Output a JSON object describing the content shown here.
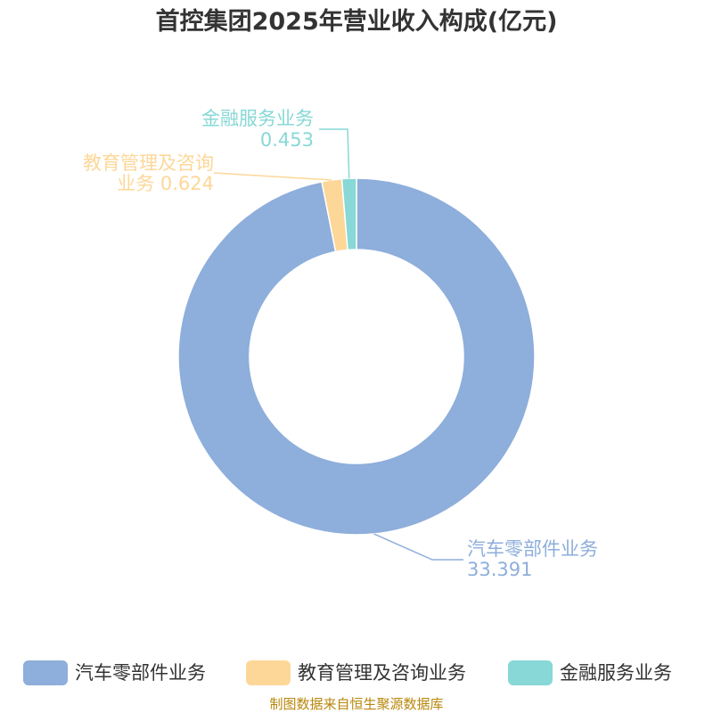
{
  "chart_data": {
    "type": "pie",
    "variant": "donut",
    "title": "首控集团2025年营业收入构成(亿元)",
    "slices": [
      {
        "name": "汽车零部件业务",
        "label_line1": "汽车零部件业务",
        "label_line2": "33.391",
        "value": 33.391,
        "color": "#8eaedb"
      },
      {
        "name": "教育管理及咨询业务",
        "label_line1": "教育管理及咨询",
        "label_line2": "业务 0.624",
        "value": 0.624,
        "color": "#fdd798"
      },
      {
        "name": "金融服务业务",
        "label_line1": "金融服务业务",
        "label_line2": "0.453",
        "value": 0.453,
        "color": "#87d8d6"
      }
    ],
    "legend": [
      "汽车零部件业务",
      "教育管理及咨询业务",
      "金融服务业务"
    ],
    "legend_position": "bottom"
  },
  "source": "制图数据来自恒生聚源数据库"
}
